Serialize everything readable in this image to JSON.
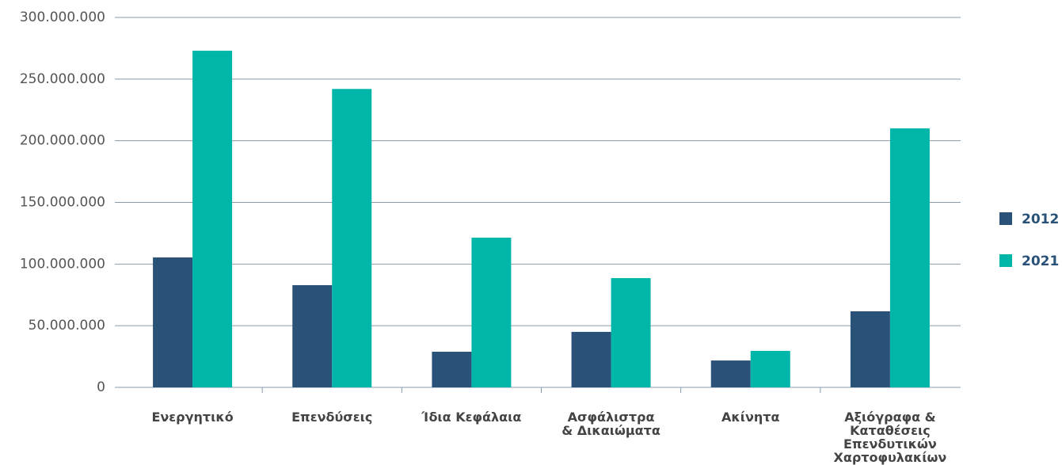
{
  "chart_data": {
    "type": "bar",
    "categories": [
      "Ενεργητικό",
      "Επενδύσεις",
      "Ίδια Κεφάλαια",
      "Ασφάλιστρα\n& Δικαιώματα",
      "Ακίνητα",
      "Αξιόγραφα &\nΚαταθέσεις Επενδυτικών\nΧαρτοφυλακίων"
    ],
    "series": [
      {
        "name": "2012",
        "color": "#2a5278",
        "values": [
          105400000,
          82900000,
          28900000,
          45000000,
          21800000,
          61700000
        ]
      },
      {
        "name": "2021",
        "color": "#00b6a8",
        "values": [
          273000000,
          242000000,
          121400000,
          88600000,
          29600000,
          210000000
        ]
      }
    ],
    "ylim": [
      0,
      300000000
    ],
    "yticks": [
      0,
      {
        "value": 50000000,
        "label": "50.000.000"
      },
      {
        "value": 100000000,
        "label": "100.000.000"
      },
      {
        "value": 150000000,
        "label": "150.000.000"
      },
      {
        "value": 200000000,
        "label": "200.000.000"
      },
      {
        "value": 250000000,
        "label": "250.000.000"
      },
      {
        "value": 300000000,
        "label": "300.000.000"
      }
    ],
    "grid": true,
    "legend": "right"
  }
}
